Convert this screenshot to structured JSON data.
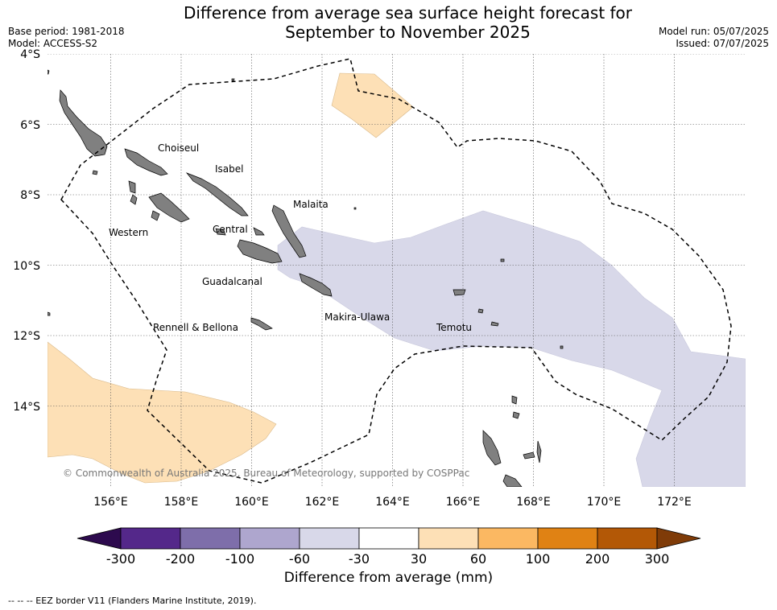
{
  "header": {
    "title_line1": "Difference from average sea surface height forecast for",
    "title_line2": "September to November 2025",
    "base_period": "Base period: 1981-2018",
    "model": "Model: ACCESS-S2",
    "model_run": "Model run: 05/07/2025",
    "issued": "Issued: 07/07/2025"
  },
  "map": {
    "lat_labels": [
      "4°S",
      "6°S",
      "8°S",
      "10°S",
      "12°S",
      "14°S"
    ],
    "lon_labels": [
      "156°E",
      "158°E",
      "160°E",
      "162°E",
      "164°E",
      "166°E",
      "168°E",
      "170°E",
      "172°E"
    ],
    "province_labels": [
      "Choiseul",
      "Isabel",
      "Malaita",
      "Western",
      "Central",
      "Guadalcanal",
      "Makira-Ulawa",
      "Rennell & Bellona",
      "Temotu"
    ],
    "copyright": "© Commonwealth of Australia 2025, Bureau of Meteorology, supported by COSPPac",
    "colors": {
      "land": "#808080",
      "positive_anomaly": "#fde0b6",
      "negative_anomaly": "#d8d8e9",
      "eez_line": "#000000"
    }
  },
  "colorbar": {
    "tick_labels": [
      "-300",
      "-200",
      "-100",
      "-60",
      "-30",
      "30",
      "60",
      "100",
      "200",
      "300"
    ],
    "colors": [
      "#2d0a4e",
      "#54288a",
      "#7e6eaa",
      "#aea6ce",
      "#d8d8e9",
      "#ffffff",
      "#fde0b6",
      "#fbb862",
      "#e08214",
      "#b35806",
      "#7f3b08"
    ],
    "title": "Difference from average (mm)"
  },
  "footnote": "--  --  -- EEZ border V11 (Flanders Marine Institute, 2019)."
}
